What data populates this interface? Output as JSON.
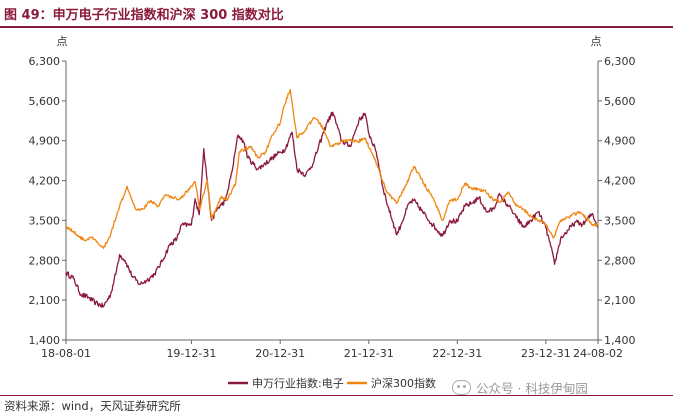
{
  "page": {
    "title": "图 49：申万电子行业指数和沪深 300 指数对比",
    "source": "资料来源：wind，天风证券研究所",
    "watermark": "公众号 · 科技伊甸园"
  },
  "chart_data": {
    "type": "line",
    "title": "",
    "ylabel_left": "点",
    "ylabel_right": "点",
    "ylim": [
      1400,
      6300
    ],
    "yticks": [
      1400,
      2100,
      2800,
      3500,
      4200,
      4900,
      5600,
      6300
    ],
    "ytick_labels": [
      "1,400",
      "2,100",
      "2,800",
      "3,500",
      "4,200",
      "4,900",
      "5,600",
      "6,300"
    ],
    "xlim": [
      "2018-08-01",
      "2024-08-02"
    ],
    "xticks": [
      "2018-08-01",
      "2019-12-31",
      "2020-12-31",
      "2021-12-31",
      "2022-12-31",
      "2023-12-31",
      "2024-08-02"
    ],
    "xtick_labels": [
      "18-08-01",
      "19-12-31",
      "20-12-31",
      "21-12-31",
      "22-12-31",
      "23-12-31",
      "24-08-02"
    ],
    "grid": false,
    "legend_position": "bottom",
    "series": [
      {
        "name": "申万行业指数:电子",
        "color": "#8b1a3a",
        "points": [
          [
            "2018-08-01",
            2580
          ],
          [
            "2018-09-01",
            2480
          ],
          [
            "2018-10-01",
            2200
          ],
          [
            "2018-11-01",
            2150
          ],
          [
            "2018-12-01",
            2050
          ],
          [
            "2019-01-03",
            1990
          ],
          [
            "2019-02-01",
            2200
          ],
          [
            "2019-02-25",
            2620
          ],
          [
            "2019-03-10",
            2900
          ],
          [
            "2019-04-01",
            2800
          ],
          [
            "2019-05-01",
            2520
          ],
          [
            "2019-06-01",
            2380
          ],
          [
            "2019-07-01",
            2450
          ],
          [
            "2019-08-01",
            2560
          ],
          [
            "2019-09-01",
            2780
          ],
          [
            "2019-10-01",
            3060
          ],
          [
            "2019-11-01",
            3180
          ],
          [
            "2019-11-20",
            3420
          ],
          [
            "2019-12-31",
            3420
          ],
          [
            "2020-01-15",
            3880
          ],
          [
            "2020-02-01",
            3600
          ],
          [
            "2020-02-20",
            4760
          ],
          [
            "2020-03-23",
            3500
          ],
          [
            "2020-04-15",
            3700
          ],
          [
            "2020-05-20",
            3850
          ],
          [
            "2020-06-15",
            4350
          ],
          [
            "2020-07-10",
            5000
          ],
          [
            "2020-07-31",
            4900
          ],
          [
            "2020-08-20",
            4600
          ],
          [
            "2020-09-30",
            4400
          ],
          [
            "2020-10-30",
            4500
          ],
          [
            "2020-11-30",
            4600
          ],
          [
            "2020-12-31",
            4700
          ],
          [
            "2021-01-20",
            4750
          ],
          [
            "2021-02-18",
            5050
          ],
          [
            "2021-03-10",
            4400
          ],
          [
            "2021-04-15",
            4300
          ],
          [
            "2021-05-15",
            4500
          ],
          [
            "2021-06-20",
            4950
          ],
          [
            "2021-07-10",
            5200
          ],
          [
            "2021-08-05",
            5400
          ],
          [
            "2021-09-10",
            4900
          ],
          [
            "2021-10-15",
            4800
          ],
          [
            "2021-11-20",
            5250
          ],
          [
            "2021-12-15",
            5380
          ],
          [
            "2022-01-01",
            5020
          ],
          [
            "2022-01-31",
            4700
          ],
          [
            "2022-03-01",
            4050
          ],
          [
            "2022-03-20",
            3750
          ],
          [
            "2022-04-26",
            3250
          ],
          [
            "2022-05-15",
            3450
          ],
          [
            "2022-06-15",
            3800
          ],
          [
            "2022-07-05",
            3850
          ],
          [
            "2022-08-10",
            3650
          ],
          [
            "2022-09-15",
            3450
          ],
          [
            "2022-10-31",
            3230
          ],
          [
            "2022-11-30",
            3500
          ],
          [
            "2022-12-31",
            3480
          ],
          [
            "2023-01-31",
            3750
          ],
          [
            "2023-02-28",
            3800
          ],
          [
            "2023-03-31",
            3900
          ],
          [
            "2023-04-30",
            3650
          ],
          [
            "2023-05-31",
            3700
          ],
          [
            "2023-06-20",
            3950
          ],
          [
            "2023-07-31",
            3750
          ],
          [
            "2023-08-31",
            3550
          ],
          [
            "2023-09-30",
            3380
          ],
          [
            "2023-10-31",
            3500
          ],
          [
            "2023-11-30",
            3650
          ],
          [
            "2023-12-31",
            3370
          ],
          [
            "2024-01-20",
            3050
          ],
          [
            "2024-02-05",
            2730
          ],
          [
            "2024-03-01",
            3180
          ],
          [
            "2024-04-01",
            3330
          ],
          [
            "2024-05-01",
            3470
          ],
          [
            "2024-06-01",
            3430
          ],
          [
            "2024-07-10",
            3620
          ],
          [
            "2024-08-02",
            3380
          ]
        ]
      },
      {
        "name": "沪深300指数",
        "color": "#f0850f",
        "points": [
          [
            "2018-08-01",
            3400
          ],
          [
            "2018-09-01",
            3300
          ],
          [
            "2018-10-15",
            3150
          ],
          [
            "2018-11-15",
            3200
          ],
          [
            "2018-12-20",
            3060
          ],
          [
            "2019-01-03",
            3010
          ],
          [
            "2019-02-01",
            3250
          ],
          [
            "2019-03-01",
            3650
          ],
          [
            "2019-04-10",
            4100
          ],
          [
            "2019-05-15",
            3700
          ],
          [
            "2019-06-15",
            3700
          ],
          [
            "2019-07-15",
            3850
          ],
          [
            "2019-08-15",
            3750
          ],
          [
            "2019-09-15",
            3950
          ],
          [
            "2019-10-15",
            3900
          ],
          [
            "2019-11-15",
            3880
          ],
          [
            "2019-12-31",
            4100
          ],
          [
            "2020-01-15",
            4180
          ],
          [
            "2020-02-03",
            3690
          ],
          [
            "2020-03-05",
            4200
          ],
          [
            "2020-03-23",
            3530
          ],
          [
            "2020-04-30",
            3900
          ],
          [
            "2020-05-29",
            3870
          ],
          [
            "2020-06-30",
            4150
          ],
          [
            "2020-07-15",
            4700
          ],
          [
            "2020-08-31",
            4800
          ],
          [
            "2020-09-30",
            4600
          ],
          [
            "2020-10-30",
            4700
          ],
          [
            "2020-11-30",
            5000
          ],
          [
            "2020-12-31",
            5210
          ],
          [
            "2021-01-15",
            5500
          ],
          [
            "2021-02-10",
            5800
          ],
          [
            "2021-03-10",
            4950
          ],
          [
            "2021-04-15",
            5100
          ],
          [
            "2021-05-20",
            5300
          ],
          [
            "2021-06-15",
            5200
          ],
          [
            "2021-07-28",
            4800
          ],
          [
            "2021-08-31",
            4850
          ],
          [
            "2021-09-15",
            4900
          ],
          [
            "2021-10-15",
            4900
          ],
          [
            "2021-11-15",
            4880
          ],
          [
            "2021-12-15",
            4950
          ],
          [
            "2022-01-28",
            4550
          ],
          [
            "2022-03-15",
            4000
          ],
          [
            "2022-04-26",
            3800
          ],
          [
            "2022-05-31",
            4100
          ],
          [
            "2022-07-05",
            4450
          ],
          [
            "2022-08-15",
            4150
          ],
          [
            "2022-09-30",
            3820
          ],
          [
            "2022-10-31",
            3500
          ],
          [
            "2022-11-30",
            3850
          ],
          [
            "2022-12-31",
            3870
          ],
          [
            "2023-01-31",
            4150
          ],
          [
            "2023-02-28",
            4050
          ],
          [
            "2023-03-31",
            4050
          ],
          [
            "2023-04-28",
            4000
          ],
          [
            "2023-05-31",
            3850
          ],
          [
            "2023-06-30",
            3840
          ],
          [
            "2023-07-31",
            4000
          ],
          [
            "2023-08-31",
            3750
          ],
          [
            "2023-09-30",
            3700
          ],
          [
            "2023-10-31",
            3570
          ],
          [
            "2023-11-30",
            3500
          ],
          [
            "2023-12-31",
            3430
          ],
          [
            "2024-02-02",
            3200
          ],
          [
            "2024-03-01",
            3500
          ],
          [
            "2024-04-01",
            3560
          ],
          [
            "2024-05-20",
            3650
          ],
          [
            "2024-06-30",
            3460
          ],
          [
            "2024-08-02",
            3400
          ]
        ]
      }
    ]
  }
}
